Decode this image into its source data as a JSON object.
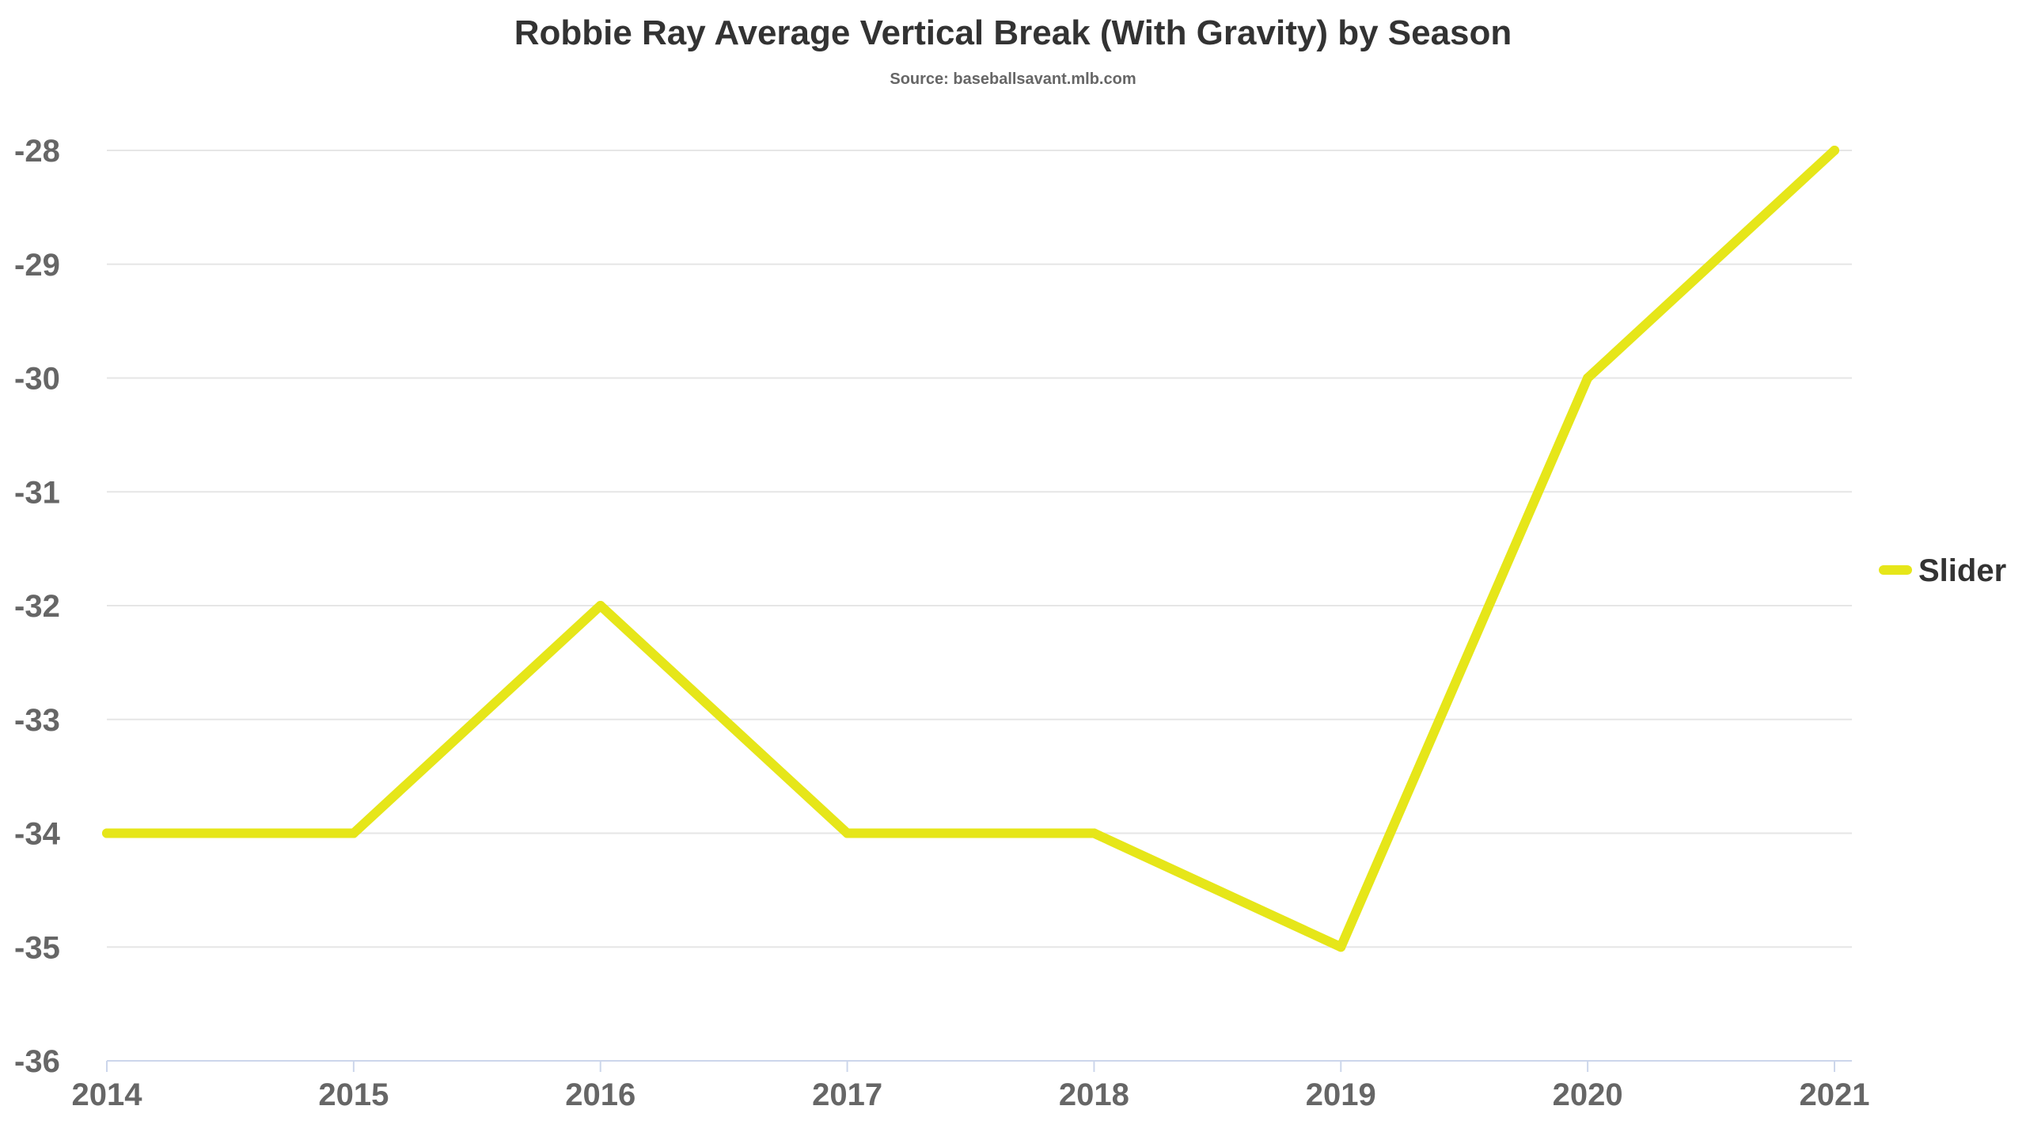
{
  "chart_data": {
    "type": "line",
    "title": "Robbie Ray Average Vertical Break (With Gravity) by Season",
    "subtitle": "Source: baseballsavant.mlb.com",
    "xlabel": "",
    "ylabel": "",
    "categories": [
      "2014",
      "2015",
      "2016",
      "2017",
      "2018",
      "2019",
      "2020",
      "2021"
    ],
    "series": [
      {
        "name": "Slider",
        "color": "#e6e619",
        "values": [
          -34,
          -34,
          -32,
          -34,
          -34,
          -35,
          -30,
          -28
        ]
      }
    ],
    "ylim": [
      -36,
      -28
    ],
    "yticks": [
      -28,
      -29,
      -30,
      -31,
      -32,
      -33,
      -34,
      -35,
      -36
    ],
    "grid": true,
    "legend_position": "right"
  }
}
